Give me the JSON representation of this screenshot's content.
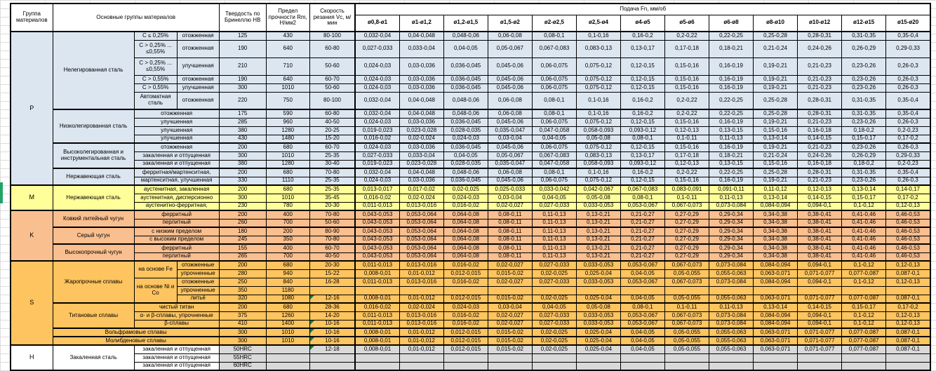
{
  "header": {
    "group": "Группа материалов",
    "main": "Основные группы материалов",
    "hardness": "Твердость по Бринеллю HB",
    "strength": "Предел прочности Rm, Н/мм2",
    "speed": "Скорость резания Vc, м/мин",
    "feed": "Подача Fn, мм/об",
    "diameters": [
      "ø0,8-ø1",
      "ø1-ø1,2",
      "ø1,2-ø1,5",
      "ø1,5-ø2",
      "ø2-ø2,5",
      "ø2,5-ø4",
      "ø4-ø5",
      "ø5-ø6",
      "ø6-ø8",
      "ø8-ø10",
      "ø10-ø12",
      "ø12-ø15",
      "ø15-ø20"
    ]
  },
  "colors": {
    "group_P": "#DCE6F1",
    "group_M": "#FFFF99",
    "group_K": "#FABF8F",
    "group_S": "#FEC45F",
    "group_H_label": "#FFFFFF",
    "group_H_data": "#D9D9D9",
    "comment_triangle": "#217346",
    "margin_marker": "#21A366"
  },
  "table": {
    "feed_profiles": {
      "A": [
        "0,032-0,04",
        "0,04-0,048",
        "0,048-0,06",
        "0,06-0,08",
        "0,08-0,1",
        "0,1-0,16",
        "0,16-0,2",
        "0,2-0,22",
        "0,22-0,25",
        "0,25-0,28",
        "0,28-0,31",
        "0,31-0,35",
        "0,35-0,4"
      ],
      "B": [
        "0,027-0,033",
        "0,033-0,04",
        "0,04-0,05",
        "0,05-0,067",
        "0,067-0,083",
        "0,083-0,13",
        "0,13-0,17",
        "0,17-0,18",
        "0,18-0,21",
        "0,21-0,24",
        "0,24-0,26",
        "0,26-0,29",
        "0,29-0,33"
      ],
      "C": [
        "0,024-0,03",
        "0,03-0,036",
        "0,036-0,045",
        "0,045-0,06",
        "0,06-0,075",
        "0,075-0,12",
        "0,12-0,15",
        "0,15-0,16",
        "0,16-0,19",
        "0,19-0,21",
        "0,21-0,23",
        "0,23-0,26",
        "0,26-0,3"
      ],
      "D": [
        "0,019-0,023",
        "0,023-0,028",
        "0,028-0,035",
        "0,035-0,047",
        "0,047-0,058",
        "0,058-0,093",
        "0,093-0,12",
        "0,12-0,13",
        "0,13-0,15",
        "0,15-0,16",
        "0,16-0,18",
        "0,18-0,2",
        "0,2-0,23"
      ],
      "E": [
        "0,016-0,02",
        "0,02-0,024",
        "0,024-0,03",
        "0,03-0,04",
        "0,04-0,05",
        "0,05-0,08",
        "0,08-0,1",
        "0,1-0,11",
        "0,11-0,13",
        "0,13-0,14",
        "0,14-0,15",
        "0,15-0,17",
        "0,17-0,2"
      ],
      "F": [
        "0,013-0,017",
        "0,017-0,02",
        "0,02-0,025",
        "0,025-0,033",
        "0,033-0,042",
        "0,042-0,067",
        "0,067-0,083",
        "0,083-0,091",
        "0,091-0,11",
        "0,11-0,12",
        "0,12-0,13",
        "0,13-0,14",
        "0,14-0,17"
      ],
      "G": [
        "0,011-0,013",
        "0,013-0,016",
        "0,016-0,02",
        "0,02-0,027",
        "0,027-0,033",
        "0,033-0,053",
        "0,053-0,067",
        "0,067-0,073",
        "0,073-0,084",
        "0,084-0,094",
        "0,094-0,1",
        "0,1-0,12",
        "0,12-0,13"
      ],
      "H": [
        "0,043-0,053",
        "0,053-0,064",
        "0,064-0,08",
        "0,08-0,11",
        "0,11-0,13",
        "0,13-0,21",
        "0,21-0,27",
        "0,27-0,29",
        "0,29-0,34",
        "0,34-0,38",
        "0,38-0,41",
        "0,41-0,46",
        "0,46-0,53"
      ],
      "I": [
        "0,008-0,01",
        "0,01-0,012",
        "0,012-0,015",
        "0,015-0,02",
        "0,02-0,025",
        "0,025-0,04",
        "0,04-0,05",
        "0,05-0,055",
        "0,055-0,063",
        "0,063-0,071",
        "0,071-0,077",
        "0,077-0,087",
        "0,087-0,1"
      ]
    },
    "groups": [
      {
        "code": "P",
        "bg": "#DCE6F1",
        "blocks": [
          {
            "material": "Нелегированная сталь",
            "rows": [
              {
                "sub": "C ≤ 0,25%",
                "treat": "отожженная",
                "hb": "125",
                "rm": "430",
                "vc": "80-100",
                "feeds": "A"
              },
              {
                "sub": "C > 0,25% ... ≤0,55%",
                "treat": "отожженная",
                "hb": "190",
                "rm": "640",
                "vc": "60-80",
                "feeds": "B",
                "tall": true
              },
              {
                "sub": "C > 0,25% ... ≤0,55%",
                "treat": "улучшенная",
                "hb": "210",
                "rm": "710",
                "vc": "50-60",
                "feeds": "C",
                "tall": true
              },
              {
                "sub": "C > 0,55%",
                "treat": "отожженная",
                "hb": "190",
                "rm": "640",
                "vc": "60-70",
                "feeds": "C"
              },
              {
                "sub": "C > 0,55%",
                "treat": "улучшенная",
                "hb": "300",
                "rm": "1010",
                "vc": "50-60",
                "feeds": "C"
              },
              {
                "sub": "Автоматная сталь",
                "treat": "отожженная",
                "hb": "220",
                "rm": "750",
                "vc": "80-100",
                "feeds": "A",
                "tall": true
              }
            ]
          },
          {
            "material": "Низколегированная сталь",
            "rows": [
              {
                "treat": "отожженная",
                "treatspan": 2,
                "hb": "175",
                "rm": "590",
                "vc": "60-80",
                "feeds": "A"
              },
              {
                "treat": "улучшенная",
                "treatspan": 2,
                "hb": "285",
                "rm": "960",
                "vc": "40-50",
                "feeds": "C"
              },
              {
                "treat": "улучшенная",
                "treatspan": 2,
                "hb": "380",
                "rm": "1280",
                "vc": "20-25",
                "feeds": "D"
              },
              {
                "treat": "улучшенная",
                "treatspan": 2,
                "hb": "430",
                "rm": "1480",
                "vc": "15-20",
                "feeds": "E"
              }
            ]
          },
          {
            "material": "Высоколегированная и инструментальная сталь",
            "rows": [
              {
                "treat": "отожженная",
                "treatspan": 2,
                "hb": "200",
                "rm": "680",
                "vc": "60-70",
                "feeds": "C"
              },
              {
                "treat": "закаленная и отпущенная",
                "treatspan": 2,
                "hb": "300",
                "rm": "1010",
                "vc": "25-35",
                "feeds": "B"
              },
              {
                "treat": "закаленная и отпущенная",
                "treatspan": 2,
                "hb": "380",
                "rm": "1280",
                "vc": "30-40",
                "feeds": "D"
              }
            ]
          },
          {
            "material": "Нержавеющая сталь",
            "rows": [
              {
                "treat": "ферритная/мартенситная,",
                "treatspan": 2,
                "hb": "200",
                "rm": "680",
                "vc": "70-80",
                "feeds": "A"
              },
              {
                "treat": "мартенситная, улучшенная",
                "treatspan": 2,
                "hb": "330",
                "rm": "1110",
                "vc": "25-35",
                "feeds": "C"
              }
            ]
          }
        ]
      },
      {
        "code": "M",
        "bg": "#FFFF99",
        "blocks": [
          {
            "material": "Нержавеющая сталь",
            "rows": [
              {
                "treat": "аустенитная, закаленная",
                "treatspan": 2,
                "hb": "200",
                "rm": "680",
                "vc": "25-35",
                "feeds": "F"
              },
              {
                "treat": "аустенитная, дисперсионно",
                "treatspan": 2,
                "hb": "300",
                "rm": "1010",
                "vc": "35-45",
                "feeds": "E"
              },
              {
                "treat": "аустенитно-ферритная,",
                "treatspan": 2,
                "hb": "230",
                "rm": "780",
                "vc": "20-30",
                "feeds": "G"
              }
            ]
          }
        ]
      },
      {
        "code": "K",
        "bg": "#FABF8F",
        "blocks": [
          {
            "material": "Ковкий литейный чугун",
            "rows": [
              {
                "treat": "ферритный",
                "treatspan": 2,
                "hb": "200",
                "rm": "400",
                "vc": "70-80",
                "feeds": "H"
              },
              {
                "treat": "перлитный",
                "treatspan": 2,
                "hb": "260",
                "rm": "700",
                "vc": "50-60",
                "feeds": "H"
              }
            ]
          },
          {
            "material": "Серый чугун",
            "rows": [
              {
                "treat": "с низким пределом",
                "treatspan": 2,
                "hb": "180",
                "rm": "200",
                "vc": "80-90",
                "feeds": "H"
              },
              {
                "treat": "с высоким пределом",
                "treatspan": 2,
                "hb": "245",
                "rm": "350",
                "vc": "70-80",
                "feeds": "H"
              }
            ]
          },
          {
            "material": "Высокопрочный чугун",
            "rows": [
              {
                "treat": "ферритный",
                "treatspan": 2,
                "hb": "155",
                "rm": "400",
                "vc": "60-70",
                "feeds": "H"
              },
              {
                "treat": "перлитный",
                "treatspan": 2,
                "hb": "265",
                "rm": "700",
                "vc": "40-50",
                "feeds": "H"
              }
            ]
          }
        ]
      },
      {
        "code": "S",
        "bg": "#FEC45F",
        "blocks": [
          {
            "material": "Жаропрочные сплавы",
            "rows": [
              {
                "sub": "на основе Fe",
                "subspan": 2,
                "treat": "отожженные",
                "hb": "200",
                "rm": "680",
                "vc": "20-30",
                "feeds": "G"
              },
              {
                "treat": "упрочненные",
                "hb": "280",
                "rm": "940",
                "vc": "15-22",
                "feeds": "I"
              },
              {
                "sub": "на основе Ni и Co",
                "subspan": 3,
                "treat": "отожженные",
                "hb": "250",
                "rm": "840",
                "vc": "16-28",
                "feeds": "G"
              },
              {
                "treat": "упрочненные",
                "hb": "350",
                "rm": "1180",
                "vc": "",
                "feeds": ""
              },
              {
                "treat": "литьё",
                "hb": "320",
                "rm": "1080",
                "vc": "12-16",
                "vcflag": true,
                "feeds": "I"
              }
            ]
          },
          {
            "material": "Титановые сплавы",
            "rows": [
              {
                "treat": "чистый титан",
                "treatspan": 2,
                "hb": "200",
                "rm": "680",
                "vc": "28-36",
                "feeds": "E"
              },
              {
                "treat": "α- и β-сплавы, упрочненные",
                "treatspan": 2,
                "hb": "375",
                "rm": "1260",
                "vc": "14-20",
                "feeds": "G"
              },
              {
                "treat": "β-сплавы",
                "treatspan": 2,
                "hb": "410",
                "rm": "1400",
                "vc": "10-16",
                "vcflag": true,
                "feeds": "G"
              }
            ]
          },
          {
            "material": "Вольфрамовые сплавы",
            "colspan": 3,
            "rows": [
              {
                "hb": "300",
                "rm": "1010",
                "vc": "10-16",
                "vcflag": true,
                "feeds": "I"
              }
            ]
          },
          {
            "material": "Молибденовые сплавы",
            "colspan": 3,
            "rows": [
              {
                "hb": "300",
                "rm": "1010",
                "vc": "10-16",
                "vcflag": true,
                "feeds": "I"
              }
            ]
          }
        ]
      },
      {
        "code": "H",
        "bg": "#FFFFFF",
        "data_bg": "#D9D9D9",
        "blocks": [
          {
            "material": "Закаленная сталь",
            "rows": [
              {
                "treat": "закаленная и отпущенная",
                "treatspan": 2,
                "hb": "50HRC",
                "rm": "",
                "vc": "12-18",
                "vcflag": true,
                "feeds": "I"
              },
              {
                "treat": "закаленная и отпущенная",
                "treatspan": 2,
                "hb": "55HRC",
                "rm": "",
                "vc": "",
                "feeds": ""
              },
              {
                "treat": "закаленная и отпущенная",
                "treatspan": 2,
                "hb": "60HRC",
                "rm": "",
                "vc": "",
                "feeds": ""
              }
            ]
          }
        ]
      }
    ]
  }
}
